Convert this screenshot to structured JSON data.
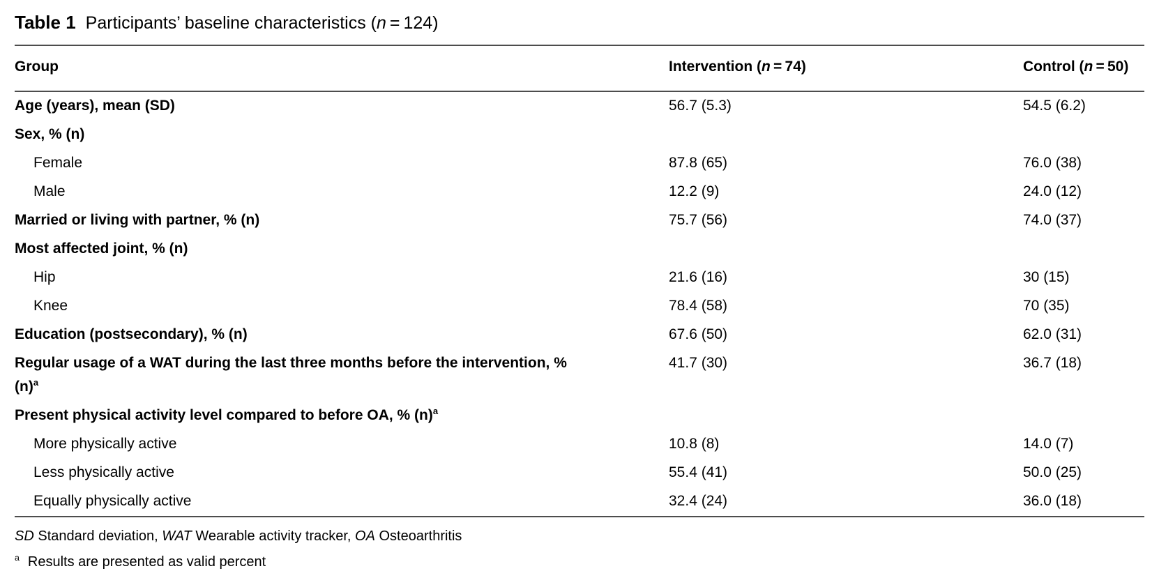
{
  "title": {
    "label": "Table 1",
    "caption_prefix": "Participants’ baseline characteristics (",
    "caption_n": "n",
    "caption_suffix": " = 124)"
  },
  "table": {
    "header": {
      "group": "Group",
      "intervention_prefix": "Intervention (",
      "intervention_n": "n",
      "intervention_suffix": " = 74)",
      "control_prefix": "Control (",
      "control_n": "n",
      "control_suffix": " = 50)"
    },
    "rows": [
      {
        "label": "Age (years), mean (SD)",
        "intervention": "56.7 (5.3)",
        "control": "54.5 (6.2)"
      },
      {
        "label": "Sex, % (n)",
        "intervention": "",
        "control": ""
      },
      {
        "label": "Female",
        "intervention": "87.8 (65)",
        "control": "76.0 (38)"
      },
      {
        "label": "Male",
        "intervention": "12.2 (9)",
        "control": "24.0 (12)"
      },
      {
        "label": "Married or living with partner, % (n)",
        "intervention": "75.7 (56)",
        "control": "74.0 (37)"
      },
      {
        "label": "Most affected joint, % (n)",
        "intervention": "",
        "control": ""
      },
      {
        "label": "Hip",
        "intervention": "21.6 (16)",
        "control": "30 (15)"
      },
      {
        "label": "Knee",
        "intervention": "78.4 (58)",
        "control": "70 (35)"
      },
      {
        "label": "Education (postsecondary), % (n)",
        "intervention": "67.6 (50)",
        "control": "62.0 (31)"
      },
      {
        "label": "Regular usage of a WAT during the last three months before the intervention, %",
        "label2": "(n)",
        "sup": "a",
        "intervention": "41.7 (30)",
        "control": "36.7 (18)"
      },
      {
        "label": "Present physical activity level compared to before OA, % (n)",
        "sup": "a",
        "intervention": "",
        "control": ""
      },
      {
        "label": "More physically active",
        "intervention": "10.8 (8)",
        "control": "14.0 (7)"
      },
      {
        "label": "Less physically active",
        "intervention": "55.4 (41)",
        "control": "50.0 (25)"
      },
      {
        "label": "Equally physically active",
        "intervention": "32.4 (24)",
        "control": "36.0 (18)"
      }
    ]
  },
  "footnotes": {
    "abbr1": "SD",
    "desc1": " Standard deviation, ",
    "abbr2": "WAT",
    "desc2": " Wearable activity tracker, ",
    "abbr3": "OA",
    "desc3": " Osteoarthritis",
    "note_marker": "a",
    "note_text": "Results are presented as valid percent"
  }
}
